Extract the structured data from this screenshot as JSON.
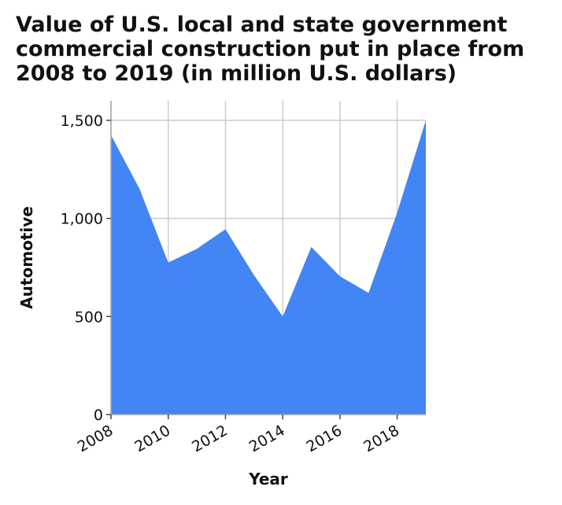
{
  "chart_data": {
    "type": "area",
    "title_lines": [
      "Value of U.S. local and state government",
      "commercial construction put in place from",
      "2008 to 2019 (in million U.S. dollars)"
    ],
    "xlabel": "Year",
    "ylabel": "Automotive",
    "x": [
      2008,
      2009,
      2010,
      2011,
      2012,
      2013,
      2014,
      2015,
      2016,
      2017,
      2018,
      2019
    ],
    "series": [
      {
        "values": [
          1425,
          1150,
          775,
          845,
          945,
          710,
          500,
          855,
          705,
          620,
          1030,
          1500
        ]
      }
    ],
    "xlim": [
      2008,
      2019
    ],
    "ylim": [
      0,
      1500
    ],
    "xticks": [
      2008,
      2010,
      2012,
      2014,
      2016,
      2018
    ],
    "yticks": [
      0,
      500,
      1000,
      1500
    ],
    "ytick_labels": [
      "0",
      "500",
      "1,000",
      "1,500"
    ],
    "fill_color": "#4285f4",
    "grid": true,
    "legend": "none"
  }
}
